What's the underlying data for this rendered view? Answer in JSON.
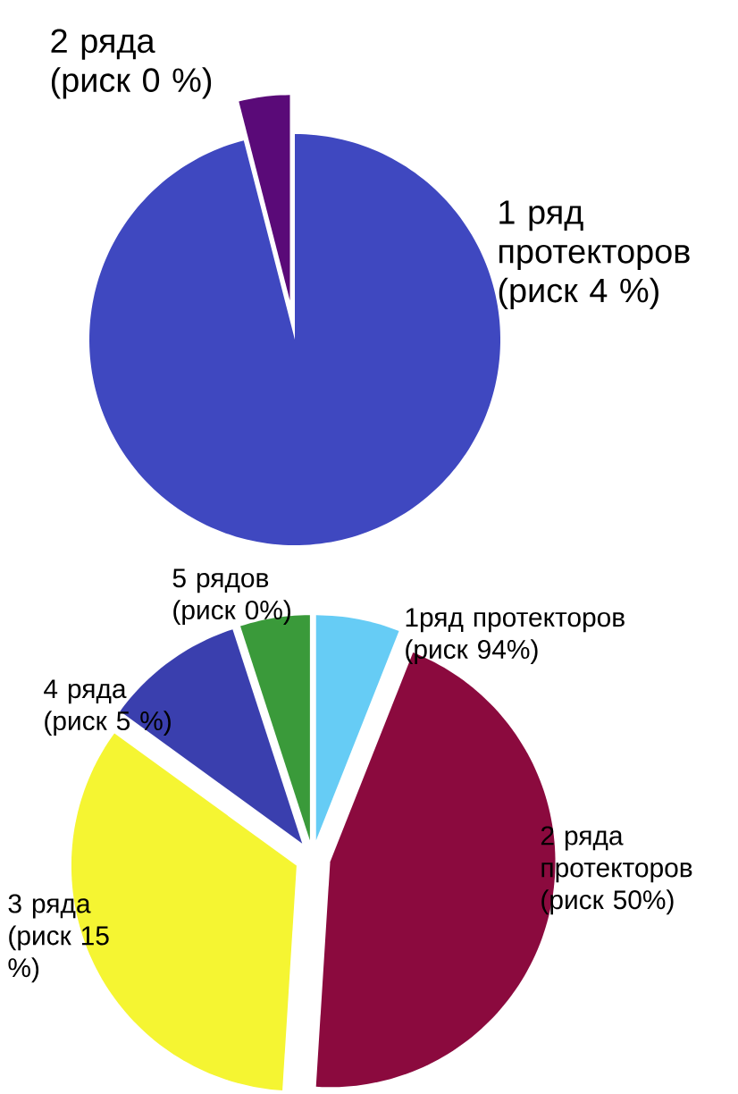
{
  "chart_data": [
    {
      "type": "pie",
      "categories": [
        "1 ряд протекторов (риск 4 %)",
        "2 ряда (риск 0 %)"
      ],
      "values": [
        96,
        4
      ],
      "colors": [
        "#3f48c0",
        "#5a0a78"
      ]
    },
    {
      "type": "pie",
      "categories": [
        "1ряд протекторов (риск 94%)",
        "2 ряда протекторов (риск 50%)",
        "3 ряда (риск 15 %)",
        "4 ряда (риск 5 %)",
        "5 рядов (риск 0%)"
      ],
      "values": [
        6,
        45,
        34,
        10,
        5
      ],
      "colors": [
        "#66ccf5",
        "#8b0a3e",
        "#f5f532",
        "#3a3fae",
        "#3a9a3a"
      ]
    }
  ]
}
